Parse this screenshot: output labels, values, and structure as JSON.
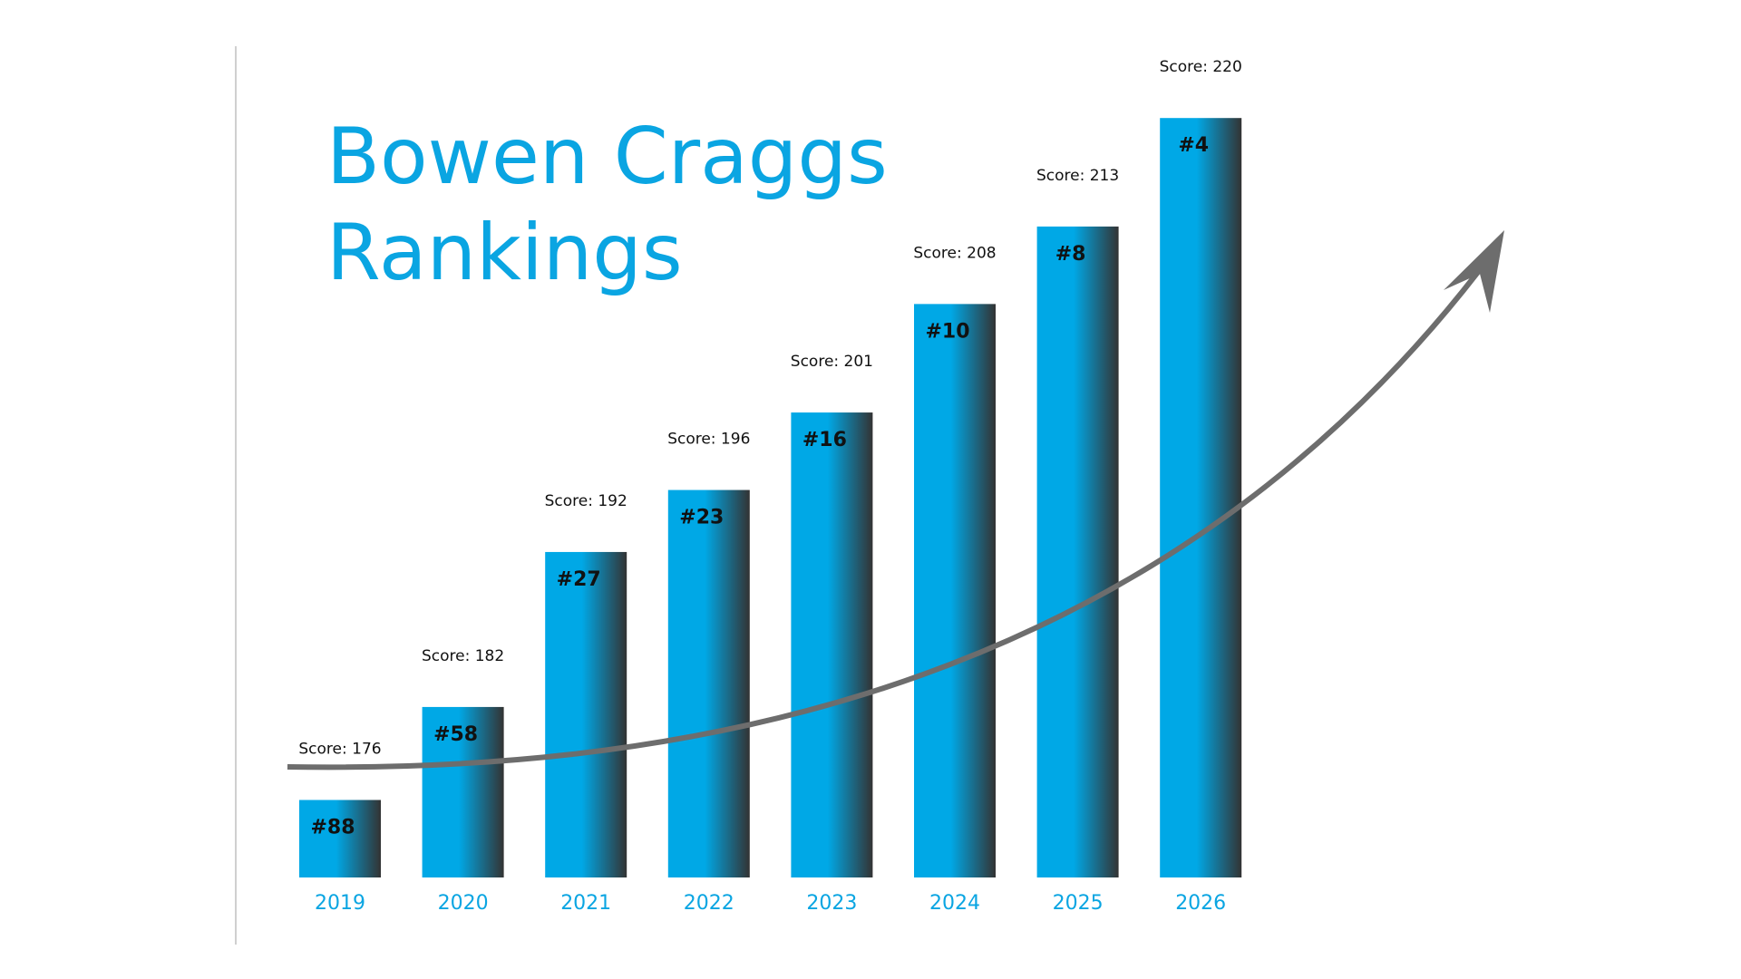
{
  "chart_data": {
    "type": "bar",
    "title": "Bowen Craggs Rankings",
    "categories": [
      "2019",
      "2020",
      "2021",
      "2022",
      "2023",
      "2024",
      "2025",
      "2026"
    ],
    "values": [
      176,
      182,
      192,
      196,
      201,
      208,
      213,
      220
    ],
    "value_labels": [
      "Score: 176",
      "Score: 182",
      "Score: 192",
      "Score: 196",
      "Score: 201",
      "Score: 208",
      "Score: 213",
      "Score: 220"
    ],
    "ranks": [
      88,
      58,
      27,
      23,
      16,
      10,
      8,
      4
    ],
    "rank_labels": [
      "#88",
      "#58",
      "#27",
      "#23",
      "#16",
      "#10",
      "#8",
      "#4"
    ],
    "ylim": [
      171,
      222
    ],
    "color": "#00a8e6",
    "shade_color": "#333333"
  }
}
